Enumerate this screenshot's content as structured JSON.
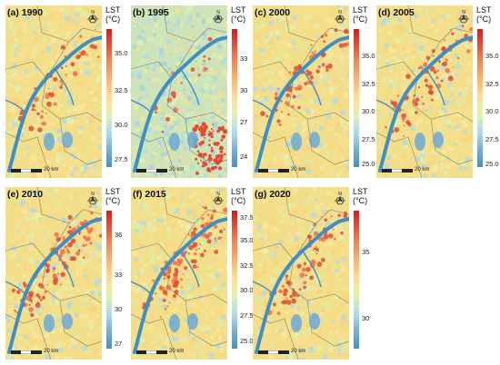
{
  "legend_title": [
    "LST",
    "(°C)"
  ],
  "scale_label": "20 km",
  "north_label": "N",
  "panels": [
    {
      "label": "(a) 1990",
      "ticks": [
        "35.0",
        "32.5",
        "30.0",
        "27.5"
      ]
    },
    {
      "label": "(b) 1995",
      "ticks": [
        "33",
        "30",
        "27",
        "24"
      ]
    },
    {
      "label": "(c) 2000",
      "ticks": [
        "35.0",
        "32.5",
        "30.0",
        "27.5",
        "25.0"
      ]
    },
    {
      "label": "(d) 2005",
      "ticks": [
        "35.0",
        "32.5",
        "30.0",
        "27.5",
        "25.0"
      ]
    },
    {
      "label": "(e) 2010",
      "ticks": [
        "36",
        "33",
        "30",
        "27"
      ]
    },
    {
      "label": "(f) 2015",
      "ticks": [
        "37.5",
        "35.0",
        "32.5",
        "30.0",
        "27.5",
        "25.0"
      ]
    },
    {
      "label": "(g) 2020",
      "ticks": [
        "35",
        "30"
      ]
    }
  ],
  "colors": {
    "hot": "#d7191c",
    "warm": "#fdae61",
    "mid": "#fee090",
    "cool": "#abd9e9",
    "cold": "#4393c3",
    "river": "#3d8fc6"
  }
}
